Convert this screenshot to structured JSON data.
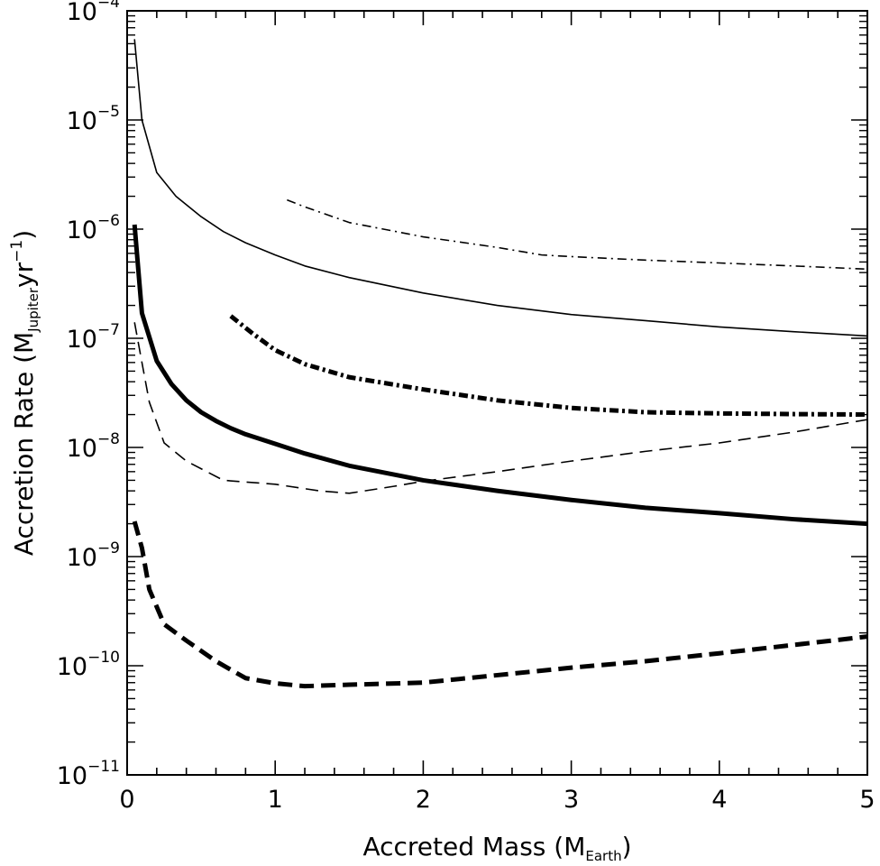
{
  "chart_data": {
    "type": "line",
    "title": "",
    "xlabel": {
      "main": "Accreted Mass (M",
      "sub": "Earth",
      "close": ")"
    },
    "ylabel": {
      "prefix": "Accretion Rate (M",
      "sub": "Jupiter",
      "mid": "yr",
      "sup": "−1",
      "close": ")"
    },
    "xlim": [
      0,
      5
    ],
    "ylim": [
      1e-11,
      0.0001
    ],
    "yscale": "log",
    "x_ticks": [
      {
        "value": 0,
        "label": "0"
      },
      {
        "value": 1,
        "label": "1"
      },
      {
        "value": 2,
        "label": "2"
      },
      {
        "value": 3,
        "label": "3"
      },
      {
        "value": 4,
        "label": "4"
      },
      {
        "value": 5,
        "label": "5"
      }
    ],
    "y_ticks": [
      {
        "value": 1e-11,
        "base": "10",
        "exp": "−11"
      },
      {
        "value": 1e-10,
        "base": "10",
        "exp": "−10"
      },
      {
        "value": 1e-09,
        "base": "10",
        "exp": "−9"
      },
      {
        "value": 1e-08,
        "base": "10",
        "exp": "−8"
      },
      {
        "value": 1e-07,
        "base": "10",
        "exp": "−7"
      },
      {
        "value": 1e-06,
        "base": "10",
        "exp": "−6"
      },
      {
        "value": 1e-05,
        "base": "10",
        "exp": "−5"
      },
      {
        "value": 0.0001,
        "base": "10",
        "exp": "−4"
      }
    ],
    "grid": false,
    "series": [
      {
        "name": "thin-solid",
        "style": "solid",
        "weight": "thin",
        "x": [
          0.05,
          0.1,
          0.2,
          0.33,
          0.5,
          0.65,
          0.8,
          1.0,
          1.2,
          1.5,
          2.0,
          2.5,
          3.0,
          3.5,
          4.0,
          4.5,
          5.0
        ],
        "y": [
          5.5e-05,
          1e-05,
          3.3e-06,
          2e-06,
          1.3e-06,
          9.5e-07,
          7.5e-07,
          5.8e-07,
          4.6e-07,
          3.6e-07,
          2.6e-07,
          2e-07,
          1.65e-07,
          1.45e-07,
          1.27e-07,
          1.15e-07,
          1.05e-07
        ]
      },
      {
        "name": "thin-dash-dot",
        "style": "dashdot",
        "weight": "thin",
        "x": [
          1.08,
          1.2,
          1.5,
          2.0,
          2.5,
          2.8,
          3.0,
          3.5,
          4.0,
          4.5,
          5.0
        ],
        "y": [
          1.85e-06,
          1.6e-06,
          1.15e-06,
          8.5e-07,
          6.8e-07,
          5.8e-07,
          5.6e-07,
          5.2e-07,
          4.9e-07,
          4.6e-07,
          4.3e-07
        ]
      },
      {
        "name": "thick-dash-dot",
        "style": "dashdot",
        "weight": "thick",
        "x": [
          0.7,
          0.85,
          1.0,
          1.2,
          1.5,
          2.0,
          2.5,
          3.0,
          3.5,
          4.0,
          4.5,
          5.0
        ],
        "y": [
          1.6e-07,
          1.1e-07,
          7.8e-08,
          5.8e-08,
          4.4e-08,
          3.4e-08,
          2.7e-08,
          2.3e-08,
          2.1e-08,
          2.05e-08,
          2.02e-08,
          2e-08
        ]
      },
      {
        "name": "thick-solid",
        "style": "solid",
        "weight": "thick",
        "x": [
          0.05,
          0.1,
          0.2,
          0.3,
          0.4,
          0.5,
          0.6,
          0.7,
          0.8,
          1.0,
          1.2,
          1.5,
          2.0,
          2.5,
          3.0,
          3.5,
          4.0,
          4.5,
          5.0
        ],
        "y": [
          1.1e-06,
          1.7e-07,
          6.2e-08,
          3.8e-08,
          2.7e-08,
          2.1e-08,
          1.75e-08,
          1.5e-08,
          1.32e-08,
          1.08e-08,
          8.8e-09,
          6.8e-09,
          5e-09,
          4e-09,
          3.3e-09,
          2.8e-09,
          2.5e-09,
          2.2e-09,
          2e-09
        ]
      },
      {
        "name": "thin-dashed",
        "style": "dashed",
        "weight": "thin",
        "x": [
          0.05,
          0.1,
          0.15,
          0.25,
          0.4,
          0.65,
          1.0,
          1.3,
          1.5,
          1.8,
          2.0,
          2.5,
          3.0,
          3.5,
          4.0,
          4.5,
          5.0
        ],
        "y": [
          1.4e-07,
          6e-08,
          2.6e-08,
          1.1e-08,
          7.5e-09,
          5e-09,
          4.6e-09,
          4e-09,
          3.8e-09,
          4.4e-09,
          4.9e-09,
          6e-09,
          7.5e-09,
          9.2e-09,
          1.1e-08,
          1.38e-08,
          1.8e-08
        ]
      },
      {
        "name": "thick-dashed",
        "style": "dashed",
        "weight": "thick",
        "x": [
          0.05,
          0.1,
          0.15,
          0.25,
          0.4,
          0.6,
          0.8,
          1.0,
          1.2,
          1.5,
          2.0,
          2.5,
          3.0,
          3.5,
          4.0,
          4.5,
          5.0
        ],
        "y": [
          2.1e-09,
          1.2e-09,
          5e-10,
          2.4e-10,
          1.7e-10,
          1.1e-10,
          7.7e-11,
          6.9e-11,
          6.5e-11,
          6.7e-11,
          7e-11,
          8.2e-11,
          9.6e-11,
          1.1e-10,
          1.3e-10,
          1.55e-10,
          1.85e-10
        ]
      }
    ]
  }
}
